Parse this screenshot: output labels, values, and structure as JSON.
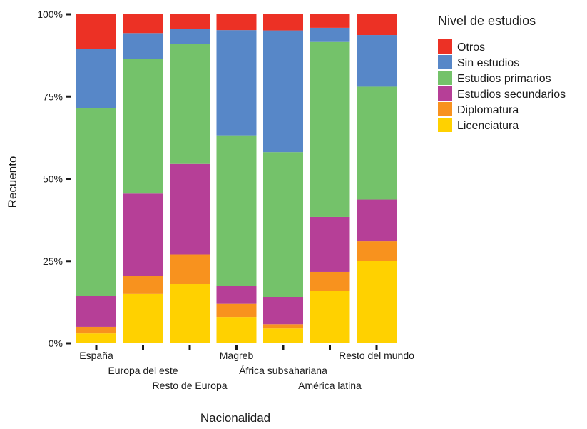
{
  "chart_data": {
    "type": "bar",
    "stacked": "percent",
    "title": "",
    "xlabel": "Nacionalidad",
    "ylabel": "Recuento",
    "ylim": [
      0,
      1
    ],
    "yticks": [
      0,
      0.25,
      0.5,
      0.75,
      1
    ],
    "ytick_labels": [
      "0%",
      "25%",
      "50%",
      "75%",
      "100%"
    ],
    "categories": [
      "España",
      "Europa del este",
      "Resto de Europa",
      "Magreb",
      "África subsahariana",
      "América latina",
      "Resto del mundo"
    ],
    "legend": {
      "title": "Nivel de estudios",
      "position": "right"
    },
    "grid": false,
    "series": [
      {
        "name": "Licenciatura",
        "color": "#FFD100",
        "values": [
          0.03,
          0.15,
          0.18,
          0.08,
          0.045,
          0.16,
          0.25
        ]
      },
      {
        "name": "Diplomatura",
        "color": "#F8921E",
        "values": [
          0.02,
          0.055,
          0.09,
          0.04,
          0.013,
          0.057,
          0.06
        ]
      },
      {
        "name": "Estudios secundarios",
        "color": "#B63F97",
        "values": [
          0.095,
          0.25,
          0.275,
          0.055,
          0.083,
          0.167,
          0.127
        ]
      },
      {
        "name": "Estudios primarios",
        "color": "#74C26A",
        "values": [
          0.57,
          0.41,
          0.365,
          0.457,
          0.44,
          0.532,
          0.343
        ]
      },
      {
        "name": "Sin estudios",
        "color": "#5787C8",
        "values": [
          0.18,
          0.078,
          0.046,
          0.32,
          0.37,
          0.043,
          0.157
        ]
      },
      {
        "name": "Otros",
        "color": "#EC3125",
        "values": [
          0.105,
          0.057,
          0.044,
          0.048,
          0.049,
          0.041,
          0.063
        ]
      }
    ],
    "legend_order": [
      "Otros",
      "Sin estudios",
      "Estudios primarios",
      "Estudios secundarios",
      "Diplomatura",
      "Licenciatura"
    ]
  }
}
